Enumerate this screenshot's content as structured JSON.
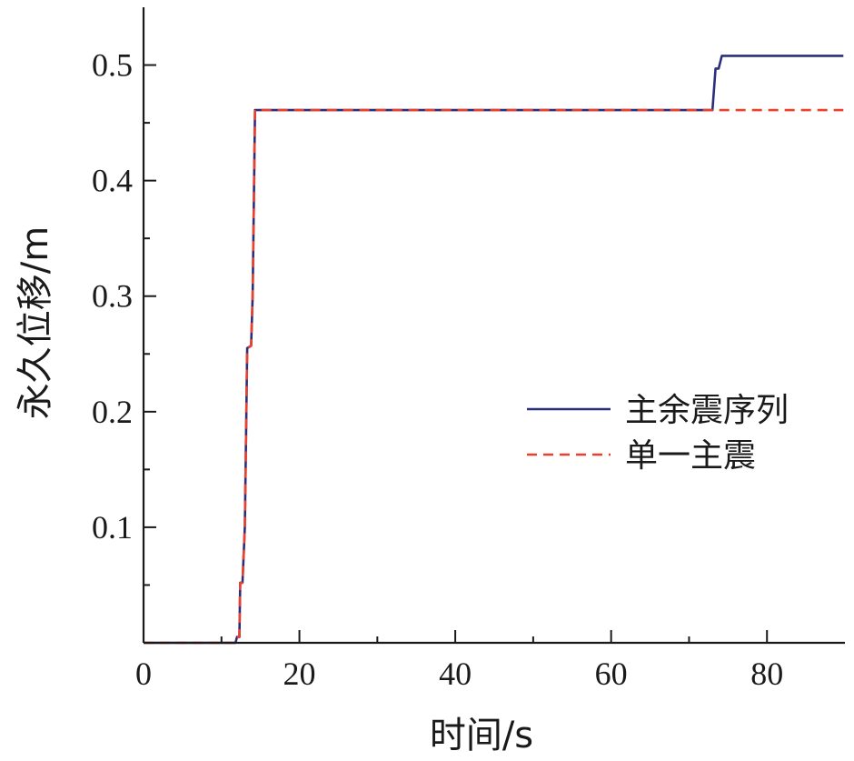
{
  "chart_data": {
    "type": "line",
    "xlabel": "时间/s",
    "ylabel": "永久位移/m",
    "xlim": [
      0,
      90
    ],
    "ylim": [
      0,
      0.55
    ],
    "xticks": [
      0,
      20,
      40,
      60,
      80
    ],
    "yticks": [
      0.1,
      0.2,
      0.3,
      0.4,
      0.5
    ],
    "x_tick_labels": [
      "0",
      "20",
      "40",
      "60",
      "80"
    ],
    "y_tick_labels": [
      "0.1",
      "0.2",
      "0.3",
      "0.4",
      "0.5"
    ],
    "grid": false,
    "legend_position": "center-right",
    "series": [
      {
        "name": "主余震序列",
        "color": "#2b2f7a",
        "style": "solid",
        "points": [
          [
            0,
            0
          ],
          [
            11.8,
            0
          ],
          [
            12.0,
            0.005
          ],
          [
            12.3,
            0.005
          ],
          [
            12.4,
            0.052
          ],
          [
            12.7,
            0.052
          ],
          [
            13.0,
            0.1
          ],
          [
            13.3,
            0.255
          ],
          [
            13.8,
            0.257
          ],
          [
            14.0,
            0.3
          ],
          [
            14.3,
            0.461
          ],
          [
            73.0,
            0.461
          ],
          [
            73.4,
            0.497
          ],
          [
            73.8,
            0.497
          ],
          [
            74.2,
            0.508
          ],
          [
            89.8,
            0.508
          ]
        ]
      },
      {
        "name": "单一主震",
        "color": "#e8412e",
        "style": "dashed",
        "points": [
          [
            0,
            0
          ],
          [
            11.8,
            0
          ],
          [
            12.0,
            0.005
          ],
          [
            12.3,
            0.005
          ],
          [
            12.4,
            0.052
          ],
          [
            12.7,
            0.052
          ],
          [
            13.0,
            0.1
          ],
          [
            13.3,
            0.255
          ],
          [
            13.8,
            0.257
          ],
          [
            14.0,
            0.3
          ],
          [
            14.3,
            0.461
          ],
          [
            89.8,
            0.461
          ]
        ]
      }
    ]
  }
}
